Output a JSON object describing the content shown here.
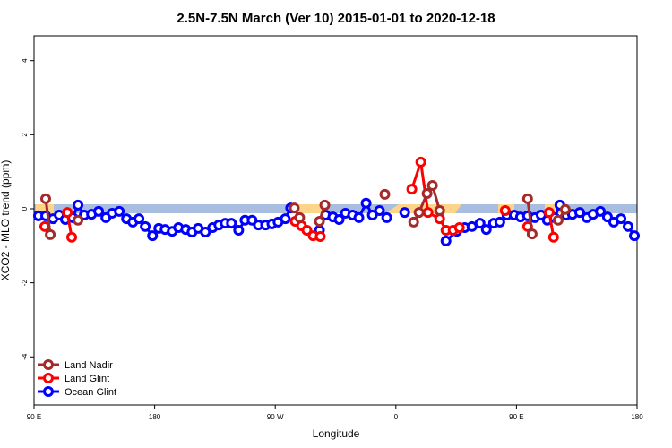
{
  "chart_data": {
    "type": "line",
    "title": "2.5N-7.5N March (Ver 10)   2015-01-01 to 2020-12-18",
    "x_label": "Longitude",
    "y_label": "XCO2 - MLO trend (ppm)",
    "xlim": [
      90,
      540
    ],
    "ylim": [
      -5.3,
      4.67
    ],
    "xticks": [
      {
        "value": 90,
        "label": "90 E"
      },
      {
        "value": 180,
        "label": "180"
      },
      {
        "value": 270,
        "label": "90 W"
      },
      {
        "value": 360,
        "label": "0"
      },
      {
        "value": 450,
        "label": "90 E"
      },
      {
        "value": 540,
        "label": "180"
      }
    ],
    "yticks": [
      -4,
      -2,
      0,
      2,
      4
    ],
    "legend": "bottom-left",
    "series": [
      {
        "name": "Land Nadir",
        "color": "#a52a2a",
        "x": [
          98.7,
          102.1,
          122.8,
          284.2,
          288.2,
          303.0,
          307.0,
          351.8,
          373.3,
          377.3,
          383.3,
          387.3,
          392.7,
          458.3,
          461.7,
          481.1,
          486.4
        ],
        "values": [
          0.27,
          -0.7,
          -0.31,
          0.02,
          -0.24,
          -0.34,
          0.1,
          0.39,
          -0.36,
          -0.1,
          0.41,
          0.63,
          -0.05,
          0.27,
          -0.68,
          -0.31,
          -0.02
        ]
      },
      {
        "name": "Land Glint",
        "color": "#ff0000",
        "x": [
          98.0,
          114.8,
          118.1,
          284.9,
          289.6,
          293.6,
          298.3,
          303.6,
          371.9,
          378.6,
          384.0,
          392.7,
          397.4,
          402.7,
          407.4,
          441.6,
          458.3,
          474.4,
          477.7
        ],
        "values": [
          -0.48,
          -0.1,
          -0.77,
          -0.34,
          -0.46,
          -0.58,
          -0.73,
          -0.75,
          0.53,
          1.26,
          -0.1,
          -0.27,
          -0.58,
          -0.58,
          -0.51,
          -0.05,
          -0.48,
          -0.1,
          -0.77
        ]
      },
      {
        "name": "Ocean Glint",
        "color": "#0000ff",
        "x": [
          93.3,
          98.7,
          104.1,
          108.8,
          113.4,
          118.8,
          122.8,
          127.5,
          132.9,
          138.2,
          143.6,
          148.3,
          153.6,
          159.0,
          163.7,
          168.3,
          173.0,
          178.4,
          183.1,
          187.8,
          193.1,
          197.8,
          203.2,
          207.9,
          212.5,
          217.9,
          223.3,
          227.9,
          232.6,
          237.3,
          242.7,
          247.4,
          252.7,
          257.4,
          262.8,
          267.5,
          272.1,
          277.5,
          281.5,
          303.0,
          307.6,
          313.0,
          317.7,
          322.4,
          327.7,
          332.4,
          337.8,
          342.5,
          347.8,
          353.2,
          366.6,
          397.4,
          405.4,
          411.4,
          416.8,
          422.8,
          427.5,
          432.9,
          437.6,
          442.9,
          448.3,
          453.0,
          458.3,
          463.7,
          468.4,
          473.0,
          478.4,
          482.4,
          487.1,
          491.8,
          497.2,
          502.5,
          507.2,
          512.6,
          517.9,
          522.6,
          528.0,
          533.3,
          538.0
        ],
        "values": [
          -0.19,
          -0.19,
          -0.27,
          -0.17,
          -0.29,
          -0.24,
          0.1,
          -0.17,
          -0.15,
          -0.07,
          -0.24,
          -0.12,
          -0.07,
          -0.27,
          -0.36,
          -0.27,
          -0.48,
          -0.73,
          -0.53,
          -0.56,
          -0.61,
          -0.51,
          -0.56,
          -0.63,
          -0.53,
          -0.63,
          -0.51,
          -0.44,
          -0.39,
          -0.39,
          -0.58,
          -0.31,
          -0.31,
          -0.44,
          -0.44,
          -0.41,
          -0.36,
          -0.27,
          0.02,
          -0.58,
          -0.17,
          -0.22,
          -0.29,
          -0.12,
          -0.17,
          -0.24,
          0.15,
          -0.17,
          -0.05,
          -0.24,
          -0.1,
          -0.87,
          -0.61,
          -0.51,
          -0.48,
          -0.39,
          -0.56,
          -0.39,
          -0.36,
          -0.17,
          -0.17,
          -0.22,
          -0.19,
          -0.24,
          -0.17,
          -0.31,
          -0.24,
          0.1,
          -0.17,
          -0.15,
          -0.1,
          -0.24,
          -0.15,
          -0.07,
          -0.22,
          -0.36,
          -0.27,
          -0.48,
          -0.73
        ]
      }
    ]
  }
}
